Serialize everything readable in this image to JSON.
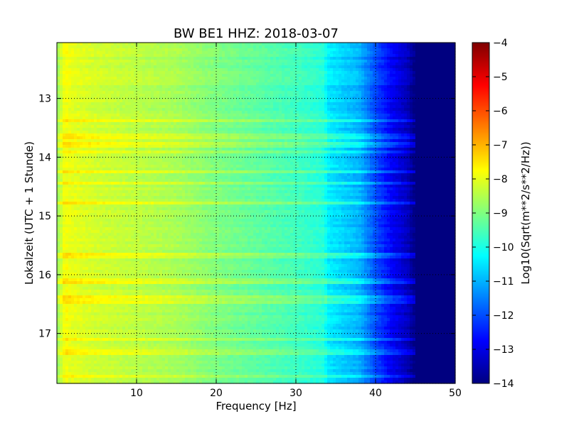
{
  "chart_data": {
    "type": "heatmap",
    "title": "BW BE1 HHZ: 2018-03-07",
    "xlabel": "Frequency [Hz]",
    "ylabel": "Lokalzeit (UTC + 1 Stunde)",
    "xlim": [
      0,
      50
    ],
    "ylim": [
      17.85,
      12.05
    ],
    "x_ticks": [
      10,
      20,
      30,
      40,
      50
    ],
    "y_ticks": [
      13,
      14,
      15,
      16,
      17
    ],
    "grid": true,
    "colormap": "jet",
    "colorbar": {
      "label": "Log10(Sqrt(m**2/s**2/Hz))",
      "range": [
        -14,
        -4
      ],
      "ticks": [
        -4,
        -5,
        -6,
        -7,
        -8,
        -9,
        -10,
        -11,
        -12,
        -13,
        -14
      ]
    },
    "spectrum_profile": {
      "frequency_hz": [
        0,
        1,
        2,
        5,
        10,
        15,
        20,
        25,
        30,
        33.5,
        34,
        38,
        40,
        42,
        44,
        45,
        50
      ],
      "log10_amplitude": [
        -8.8,
        -7.8,
        -8.0,
        -8.2,
        -8.4,
        -8.6,
        -9.0,
        -9.3,
        -9.6,
        -9.9,
        -10.4,
        -11.0,
        -12.0,
        -12.8,
        -13.4,
        -14.0,
        -14.0
      ]
    },
    "bright_bands_hour": [
      13.37,
      13.65,
      13.8,
      13.9,
      14.25,
      14.43,
      14.77,
      15.67,
      16.12,
      16.39,
      16.48,
      17.1,
      17.31,
      17.72
    ]
  }
}
